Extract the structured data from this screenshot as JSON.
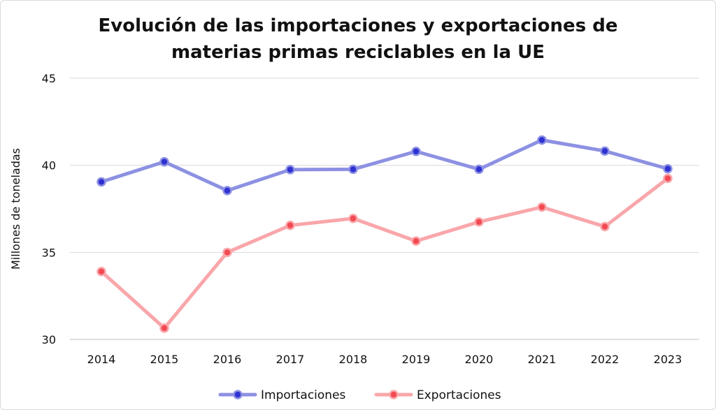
{
  "chart_data": {
    "type": "line",
    "title_lines": [
      "Evolución de las importaciones y exportaciones de",
      "materias primas reciclables en la UE"
    ],
    "ylabel": "Millones de toneladas",
    "xlabel": "",
    "ylim": [
      30,
      45
    ],
    "yticks": [
      30,
      35,
      40,
      45
    ],
    "grid": true,
    "legend_position": "bottom-center",
    "categories": [
      "2014",
      "2015",
      "2016",
      "2017",
      "2018",
      "2019",
      "2020",
      "2021",
      "2022",
      "2023"
    ],
    "series": [
      {
        "name": "Importaciones",
        "line_color": "#8d91e3",
        "marker_color": "#2f32d1",
        "values": [
          39.05,
          40.2,
          38.55,
          39.75,
          39.77,
          40.8,
          39.77,
          41.45,
          40.82,
          39.8
        ]
      },
      {
        "name": "Exportaciones",
        "line_color": "#f9a6aa",
        "marker_color": "#f24a52",
        "values": [
          33.9,
          30.65,
          35.0,
          36.55,
          36.95,
          35.65,
          36.75,
          37.6,
          36.48,
          39.25
        ]
      }
    ]
  }
}
